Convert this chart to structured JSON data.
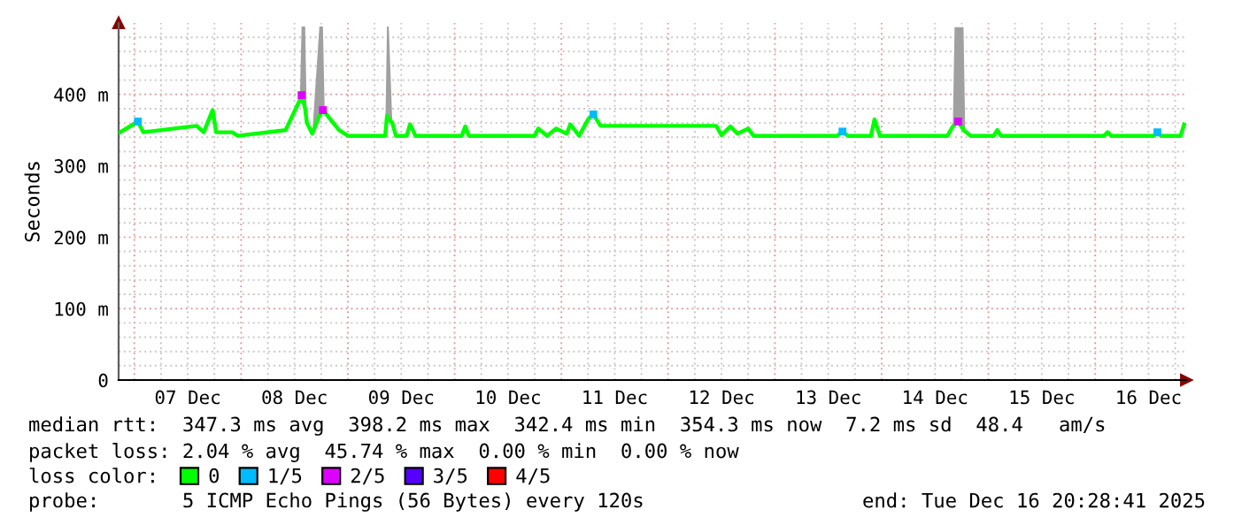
{
  "chart_data": {
    "type": "line",
    "ylabel": "Seconds",
    "legend_title": "loss color:",
    "legend": "bottom left",
    "grid": true,
    "marker": "none",
    "line_style": "solid",
    "xlim": [
      "2025-12-06T20:28",
      "2025-12-16T20:28"
    ],
    "xticks": [
      {
        "value": "2025-12-07T12:00",
        "label": "07 Dec"
      },
      {
        "value": "2025-12-08T12:00",
        "label": "08 Dec"
      },
      {
        "value": "2025-12-09T12:00",
        "label": "09 Dec"
      },
      {
        "value": "2025-12-10T12:00",
        "label": "10 Dec"
      },
      {
        "value": "2025-12-11T12:00",
        "label": "11 Dec"
      },
      {
        "value": "2025-12-12T12:00",
        "label": "12 Dec"
      },
      {
        "value": "2025-12-13T12:00",
        "label": "13 Dec"
      },
      {
        "value": "2025-12-14T12:00",
        "label": "14 Dec"
      },
      {
        "value": "2025-12-15T12:00",
        "label": "15 Dec"
      },
      {
        "value": "2025-12-16T12:00",
        "label": "16 Dec"
      }
    ],
    "ylim": [
      0,
      500
    ],
    "yticks": [
      0,
      {
        "value": 100,
        "label": "100 m"
      },
      {
        "value": 200,
        "label": "200 m"
      },
      {
        "value": 300,
        "label": "300 m"
      },
      {
        "value": 400,
        "label": "400 m"
      }
    ],
    "x": [
      "2025-12-06T20:48",
      "2025-12-07T00:48",
      "2025-12-07T02:00",
      "2025-12-07T14:00",
      "2025-12-07T15:36",
      "2025-12-07T17:36",
      "2025-12-07T18:24",
      "2025-12-07T22:00",
      "2025-12-07T23:12",
      "2025-12-08T10:00",
      "2025-12-08T13:12",
      "2025-12-08T13:36",
      "2025-12-08T14:24",
      "2025-12-08T14:48",
      "2025-12-08T16:00",
      "2025-12-08T17:36",
      "2025-12-08T18:24",
      "2025-12-08T18:48",
      "2025-12-08T22:00",
      "2025-12-09T00:00",
      "2025-12-09T08:24",
      "2025-12-09T08:48",
      "2025-12-09T09:12",
      "2025-12-09T10:00",
      "2025-12-09T10:48",
      "2025-12-09T13:12",
      "2025-12-09T14:00",
      "2025-12-09T15:12",
      "2025-12-10T01:36",
      "2025-12-10T02:24",
      "2025-12-10T03:12",
      "2025-12-10T18:00",
      "2025-12-10T18:48",
      "2025-12-10T20:48",
      "2025-12-10T22:48",
      "2025-12-11T01:12",
      "2025-12-11T02:00",
      "2025-12-11T04:00",
      "2025-12-11T06:00",
      "2025-12-11T07:12",
      "2025-12-11T08:48",
      "2025-12-12T10:48",
      "2025-12-12T12:00",
      "2025-12-12T14:00",
      "2025-12-12T15:36",
      "2025-12-12T18:00",
      "2025-12-12T19:12",
      "2025-12-13T14:00",
      "2025-12-13T15:12",
      "2025-12-13T16:24",
      "2025-12-13T21:36",
      "2025-12-13T22:24",
      "2025-12-13T23:36",
      "2025-12-14T14:48",
      "2025-12-14T16:00",
      "2025-12-14T16:24",
      "2025-12-14T17:12",
      "2025-12-14T18:24",
      "2025-12-14T18:48",
      "2025-12-14T20:00",
      "2025-12-15T01:12",
      "2025-12-15T02:00",
      "2025-12-15T02:48",
      "2025-12-16T02:00",
      "2025-12-16T02:48",
      "2025-12-16T03:36",
      "2025-12-16T13:12",
      "2025-12-16T14:00",
      "2025-12-16T14:48",
      "2025-12-16T19:12",
      "2025-12-16T20:00"
    ],
    "series": [
      {
        "name": "0",
        "color": "#00ff00",
        "values": [
          347,
          362,
          347,
          356,
          347,
          378,
          347,
          347,
          342,
          350,
          392,
          399,
          380,
          360,
          345,
          370,
          378,
          375,
          350,
          342,
          342,
          370,
          365,
          360,
          342,
          342,
          358,
          342,
          342,
          355,
          342,
          342,
          352,
          342,
          352,
          345,
          358,
          342,
          365,
          372,
          356,
          356,
          343,
          355,
          345,
          352,
          342,
          342,
          348,
          342,
          342,
          365,
          342,
          342,
          355,
          358,
          362,
          350,
          348,
          342,
          342,
          350,
          342,
          342,
          347,
          342,
          342,
          347,
          342,
          342,
          358
        ],
        "lower": [
          347,
          362,
          347,
          356,
          347,
          378,
          347,
          347,
          342,
          350,
          392,
          399,
          380,
          360,
          345,
          370,
          378,
          375,
          350,
          342,
          342,
          370,
          365,
          360,
          342,
          342,
          358,
          342,
          342,
          355,
          342,
          342,
          352,
          342,
          352,
          345,
          358,
          342,
          365,
          372,
          356,
          356,
          343,
          355,
          345,
          352,
          342,
          342,
          348,
          342,
          342,
          365,
          342,
          342,
          355,
          358,
          362,
          350,
          348,
          342,
          342,
          350,
          342,
          342,
          347,
          342,
          342,
          347,
          342,
          342,
          358
        ],
        "upper": [
          347,
          362,
          347,
          356,
          347,
          378,
          347,
          347,
          342,
          350,
          392,
          495,
          495,
          360,
          345,
          495,
          495,
          375,
          350,
          342,
          342,
          495,
          495,
          360,
          342,
          342,
          358,
          342,
          342,
          355,
          342,
          342,
          352,
          342,
          352,
          345,
          358,
          342,
          365,
          372,
          356,
          356,
          343,
          355,
          345,
          352,
          342,
          342,
          348,
          342,
          342,
          365,
          342,
          342,
          355,
          494,
          494,
          494,
          348,
          342,
          342,
          350,
          342,
          342,
          347,
          342,
          342,
          347,
          342,
          342,
          358
        ]
      },
      {
        "name": "1/5",
        "type": "scatter",
        "marker": "square",
        "color": "#00bbff",
        "x": [
          "2025-12-07T00:48",
          "2025-12-11T07:12",
          "2025-12-13T15:12",
          "2025-12-16T14:00"
        ],
        "values": [
          362,
          372,
          348,
          347
        ]
      },
      {
        "name": "2/5",
        "type": "scatter",
        "marker": "square",
        "color": "#dd00ff",
        "x": [
          "2025-12-08T13:36",
          "2025-12-08T18:24",
          "2025-12-14T17:12"
        ],
        "values": [
          399,
          378,
          362
        ]
      },
      {
        "name": "3/5",
        "type": "scatter",
        "marker": "square",
        "color": "#5500ff",
        "values": [
          null,
          null,
          null,
          null,
          null,
          null,
          null,
          null,
          null,
          null,
          null,
          null,
          null,
          null,
          null,
          null,
          null,
          null,
          null,
          null,
          null,
          null,
          null,
          null,
          null,
          null,
          null,
          null,
          null,
          null,
          null,
          null,
          null,
          null,
          null,
          null,
          null,
          null,
          null,
          null,
          null,
          null,
          null,
          null,
          null,
          null,
          null,
          null,
          null,
          null,
          null,
          null,
          null,
          null,
          null,
          null,
          null,
          null,
          null,
          null,
          null,
          null,
          null,
          null,
          null,
          null,
          null,
          null,
          null,
          null,
          null
        ]
      },
      {
        "name": "4/5",
        "type": "scatter",
        "marker": "square",
        "color": "#ff0000",
        "values": [
          null,
          null,
          null,
          null,
          null,
          null,
          null,
          null,
          null,
          null,
          null,
          null,
          null,
          null,
          null,
          null,
          null,
          null,
          null,
          null,
          null,
          null,
          null,
          null,
          null,
          null,
          null,
          null,
          null,
          null,
          null,
          null,
          null,
          null,
          null,
          null,
          null,
          null,
          null,
          null,
          null,
          null,
          null,
          null,
          null,
          null,
          null,
          null,
          null,
          null,
          null,
          null,
          null,
          null,
          null,
          null,
          null,
          null,
          null,
          null,
          null,
          null,
          null,
          null,
          null,
          null,
          null,
          null,
          null,
          null,
          null
        ]
      }
    ],
    "annotations": [
      "median rtt:  347.3 ms avg  398.2 ms max  342.4 ms min  354.3 ms now  7.2 ms sd  48.4   am/s",
      "packet loss: 2.04 % avg  45.74 % max  0.00 % min  0.00 % now",
      "probe:       5 ICMP Echo Pings (56 Bytes) every 120s",
      "end: Tue Dec 16 20:28:41 2025"
    ]
  }
}
